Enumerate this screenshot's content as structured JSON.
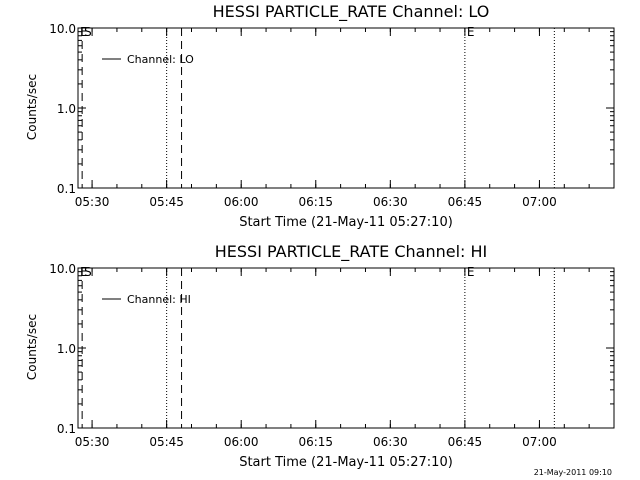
{
  "footer": {
    "timestamp": "21-May-2011 09:10"
  },
  "chart_data": [
    {
      "type": "line",
      "title": "HESSI PARTICLE_RATE Channel: LO",
      "xlabel": "Start Time (21-May-11 05:27:10)",
      "ylabel": "Counts/sec",
      "x_ticks": [
        "05:30",
        "05:45",
        "06:00",
        "06:15",
        "06:30",
        "06:45",
        "07:00"
      ],
      "x_tick_values": [
        "05:30",
        "05:45",
        "06:00",
        "06:15",
        "06:30",
        "06:45",
        "07:00"
      ],
      "xlim": [
        "05:27:10",
        "07:15"
      ],
      "y_scale": "log",
      "y_ticks": [
        "0.1",
        "1.0",
        "10.0"
      ],
      "ylim": [
        0.1,
        10.0
      ],
      "legend": {
        "position": "top-left",
        "entries": [
          {
            "label": "Channel: LO"
          }
        ]
      },
      "series": [
        {
          "name": "Channel: LO",
          "x": [],
          "y": []
        }
      ],
      "vlines": [
        {
          "time": "05:28",
          "style": "dashed",
          "label": "S"
        },
        {
          "time": "05:45",
          "style": "dotted",
          "label": ""
        },
        {
          "time": "05:48",
          "style": "dashed",
          "label": ""
        },
        {
          "time": "06:45",
          "style": "dotted",
          "label": "E"
        },
        {
          "time": "07:03",
          "style": "dotted",
          "label": ""
        }
      ],
      "edge_labels": [
        {
          "text": "E",
          "position": "top-left"
        }
      ]
    },
    {
      "type": "line",
      "title": "HESSI PARTICLE_RATE Channel: HI",
      "xlabel": "Start Time (21-May-11 05:27:10)",
      "ylabel": "Counts/sec",
      "x_ticks": [
        "05:30",
        "05:45",
        "06:00",
        "06:15",
        "06:30",
        "06:45",
        "07:00"
      ],
      "x_tick_values": [
        "05:30",
        "05:45",
        "06:00",
        "06:15",
        "06:30",
        "06:45",
        "07:00"
      ],
      "xlim": [
        "05:27:10",
        "07:15"
      ],
      "y_scale": "log",
      "y_ticks": [
        "0.1",
        "1.0",
        "10.0"
      ],
      "ylim": [
        0.1,
        10.0
      ],
      "legend": {
        "position": "top-left",
        "entries": [
          {
            "label": "Channel: HI"
          }
        ]
      },
      "series": [
        {
          "name": "Channel: HI",
          "x": [],
          "y": []
        }
      ],
      "vlines": [
        {
          "time": "05:28",
          "style": "dashed",
          "label": "S"
        },
        {
          "time": "05:45",
          "style": "dotted",
          "label": ""
        },
        {
          "time": "05:48",
          "style": "dashed",
          "label": ""
        },
        {
          "time": "06:45",
          "style": "dotted",
          "label": "E"
        },
        {
          "time": "07:03",
          "style": "dotted",
          "label": ""
        }
      ],
      "edge_labels": [
        {
          "text": "E",
          "position": "top-left"
        }
      ]
    }
  ]
}
